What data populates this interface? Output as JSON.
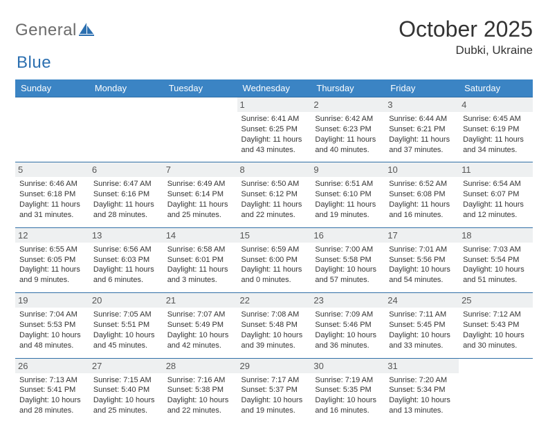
{
  "logo": {
    "text_left": "General",
    "text_right": "Blue"
  },
  "title": "October 2025",
  "location": "Dubki, Ukraine",
  "colors": {
    "header_bg": "#3b84c4",
    "header_text": "#ffffff",
    "row_border": "#2f6ea6",
    "daynum_bg": "#eef0f1",
    "body_text": "#333333",
    "logo_gray": "#6b6b6b",
    "logo_blue": "#2b6fb0"
  },
  "day_headers": [
    "Sunday",
    "Monday",
    "Tuesday",
    "Wednesday",
    "Thursday",
    "Friday",
    "Saturday"
  ],
  "weeks": [
    [
      {
        "n": "",
        "sr": "",
        "ss": "",
        "dl": ""
      },
      {
        "n": "",
        "sr": "",
        "ss": "",
        "dl": ""
      },
      {
        "n": "",
        "sr": "",
        "ss": "",
        "dl": ""
      },
      {
        "n": "1",
        "sr": "6:41 AM",
        "ss": "6:25 PM",
        "dl": "11 hours and 43 minutes."
      },
      {
        "n": "2",
        "sr": "6:42 AM",
        "ss": "6:23 PM",
        "dl": "11 hours and 40 minutes."
      },
      {
        "n": "3",
        "sr": "6:44 AM",
        "ss": "6:21 PM",
        "dl": "11 hours and 37 minutes."
      },
      {
        "n": "4",
        "sr": "6:45 AM",
        "ss": "6:19 PM",
        "dl": "11 hours and 34 minutes."
      }
    ],
    [
      {
        "n": "5",
        "sr": "6:46 AM",
        "ss": "6:18 PM",
        "dl": "11 hours and 31 minutes."
      },
      {
        "n": "6",
        "sr": "6:47 AM",
        "ss": "6:16 PM",
        "dl": "11 hours and 28 minutes."
      },
      {
        "n": "7",
        "sr": "6:49 AM",
        "ss": "6:14 PM",
        "dl": "11 hours and 25 minutes."
      },
      {
        "n": "8",
        "sr": "6:50 AM",
        "ss": "6:12 PM",
        "dl": "11 hours and 22 minutes."
      },
      {
        "n": "9",
        "sr": "6:51 AM",
        "ss": "6:10 PM",
        "dl": "11 hours and 19 minutes."
      },
      {
        "n": "10",
        "sr": "6:52 AM",
        "ss": "6:08 PM",
        "dl": "11 hours and 16 minutes."
      },
      {
        "n": "11",
        "sr": "6:54 AM",
        "ss": "6:07 PM",
        "dl": "11 hours and 12 minutes."
      }
    ],
    [
      {
        "n": "12",
        "sr": "6:55 AM",
        "ss": "6:05 PM",
        "dl": "11 hours and 9 minutes."
      },
      {
        "n": "13",
        "sr": "6:56 AM",
        "ss": "6:03 PM",
        "dl": "11 hours and 6 minutes."
      },
      {
        "n": "14",
        "sr": "6:58 AM",
        "ss": "6:01 PM",
        "dl": "11 hours and 3 minutes."
      },
      {
        "n": "15",
        "sr": "6:59 AM",
        "ss": "6:00 PM",
        "dl": "11 hours and 0 minutes."
      },
      {
        "n": "16",
        "sr": "7:00 AM",
        "ss": "5:58 PM",
        "dl": "10 hours and 57 minutes."
      },
      {
        "n": "17",
        "sr": "7:01 AM",
        "ss": "5:56 PM",
        "dl": "10 hours and 54 minutes."
      },
      {
        "n": "18",
        "sr": "7:03 AM",
        "ss": "5:54 PM",
        "dl": "10 hours and 51 minutes."
      }
    ],
    [
      {
        "n": "19",
        "sr": "7:04 AM",
        "ss": "5:53 PM",
        "dl": "10 hours and 48 minutes."
      },
      {
        "n": "20",
        "sr": "7:05 AM",
        "ss": "5:51 PM",
        "dl": "10 hours and 45 minutes."
      },
      {
        "n": "21",
        "sr": "7:07 AM",
        "ss": "5:49 PM",
        "dl": "10 hours and 42 minutes."
      },
      {
        "n": "22",
        "sr": "7:08 AM",
        "ss": "5:48 PM",
        "dl": "10 hours and 39 minutes."
      },
      {
        "n": "23",
        "sr": "7:09 AM",
        "ss": "5:46 PM",
        "dl": "10 hours and 36 minutes."
      },
      {
        "n": "24",
        "sr": "7:11 AM",
        "ss": "5:45 PM",
        "dl": "10 hours and 33 minutes."
      },
      {
        "n": "25",
        "sr": "7:12 AM",
        "ss": "5:43 PM",
        "dl": "10 hours and 30 minutes."
      }
    ],
    [
      {
        "n": "26",
        "sr": "7:13 AM",
        "ss": "5:41 PM",
        "dl": "10 hours and 28 minutes."
      },
      {
        "n": "27",
        "sr": "7:15 AM",
        "ss": "5:40 PM",
        "dl": "10 hours and 25 minutes."
      },
      {
        "n": "28",
        "sr": "7:16 AM",
        "ss": "5:38 PM",
        "dl": "10 hours and 22 minutes."
      },
      {
        "n": "29",
        "sr": "7:17 AM",
        "ss": "5:37 PM",
        "dl": "10 hours and 19 minutes."
      },
      {
        "n": "30",
        "sr": "7:19 AM",
        "ss": "5:35 PM",
        "dl": "10 hours and 16 minutes."
      },
      {
        "n": "31",
        "sr": "7:20 AM",
        "ss": "5:34 PM",
        "dl": "10 hours and 13 minutes."
      },
      {
        "n": "",
        "sr": "",
        "ss": "",
        "dl": ""
      }
    ]
  ],
  "labels": {
    "sunrise": "Sunrise: ",
    "sunset": "Sunset: ",
    "daylight": "Daylight: "
  }
}
